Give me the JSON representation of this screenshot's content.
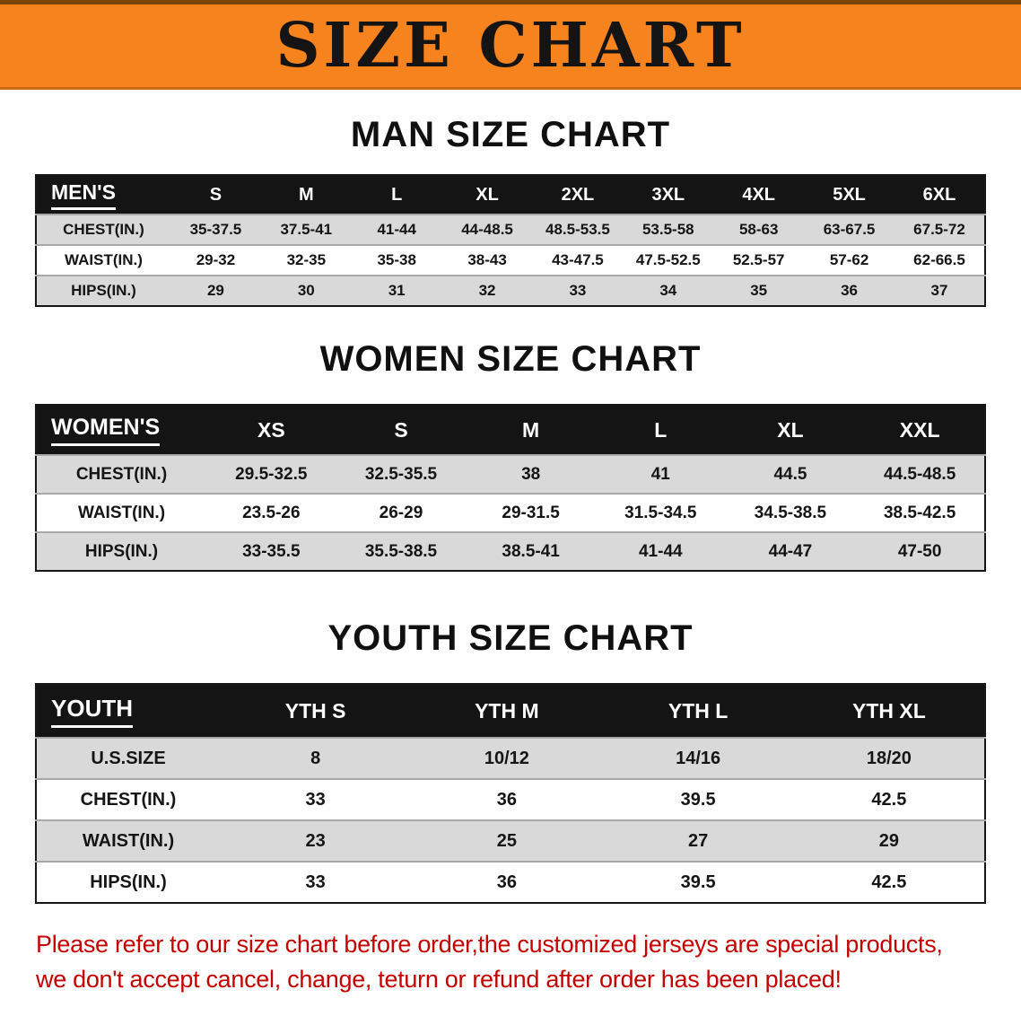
{
  "banner": {
    "title": "SIZE CHART",
    "bg": "#f6831e",
    "text_color": "#141414"
  },
  "sections": [
    {
      "heading": "MAN SIZE CHART",
      "table": {
        "header": [
          "MEN'S",
          "S",
          "M",
          "L",
          "XL",
          "2XL",
          "3XL",
          "4XL",
          "5XL",
          "6XL"
        ],
        "rows": [
          [
            "CHEST(IN.)",
            "35-37.5",
            "37.5-41",
            "41-44",
            "44-48.5",
            "48.5-53.5",
            "53.5-58",
            "58-63",
            "63-67.5",
            "67.5-72"
          ],
          [
            "WAIST(IN.)",
            "29-32",
            "32-35",
            "35-38",
            "38-43",
            "43-47.5",
            "47.5-52.5",
            "52.5-57",
            "57-62",
            "62-66.5"
          ],
          [
            "HIPS(IN.)",
            "29",
            "30",
            "31",
            "32",
            "33",
            "34",
            "35",
            "36",
            "37"
          ]
        ]
      }
    },
    {
      "heading": "WOMEN SIZE CHART",
      "table": {
        "header": [
          "WOMEN'S",
          "XS",
          "S",
          "M",
          "L",
          "XL",
          "XXL"
        ],
        "rows": [
          [
            "CHEST(IN.)",
            "29.5-32.5",
            "32.5-35.5",
            "38",
            "41",
            "44.5",
            "44.5-48.5"
          ],
          [
            "WAIST(IN.)",
            "23.5-26",
            "26-29",
            "29-31.5",
            "31.5-34.5",
            "34.5-38.5",
            "38.5-42.5"
          ],
          [
            "HIPS(IN.)",
            "33-35.5",
            "35.5-38.5",
            "38.5-41",
            "41-44",
            "44-47",
            "47-50"
          ]
        ]
      }
    },
    {
      "heading": "YOUTH SIZE CHART",
      "table": {
        "header": [
          "YOUTH",
          "YTH S",
          "YTH M",
          "YTH L",
          "YTH XL"
        ],
        "rows": [
          [
            "U.S.SIZE",
            "8",
            "10/12",
            "14/16",
            "18/20"
          ],
          [
            "CHEST(IN.)",
            "33",
            "36",
            "39.5",
            "42.5"
          ],
          [
            "WAIST(IN.)",
            "23",
            "25",
            "27",
            "29"
          ],
          [
            "HIPS(IN.)",
            "33",
            "36",
            "39.5",
            "42.5"
          ]
        ]
      }
    }
  ],
  "footer": {
    "color": "#c40000",
    "lines": [
      "Please refer to our size chart before order,the customized jerseys are special products,",
      "we don't accept cancel, change, teturn or refund after order has been placed!"
    ]
  }
}
